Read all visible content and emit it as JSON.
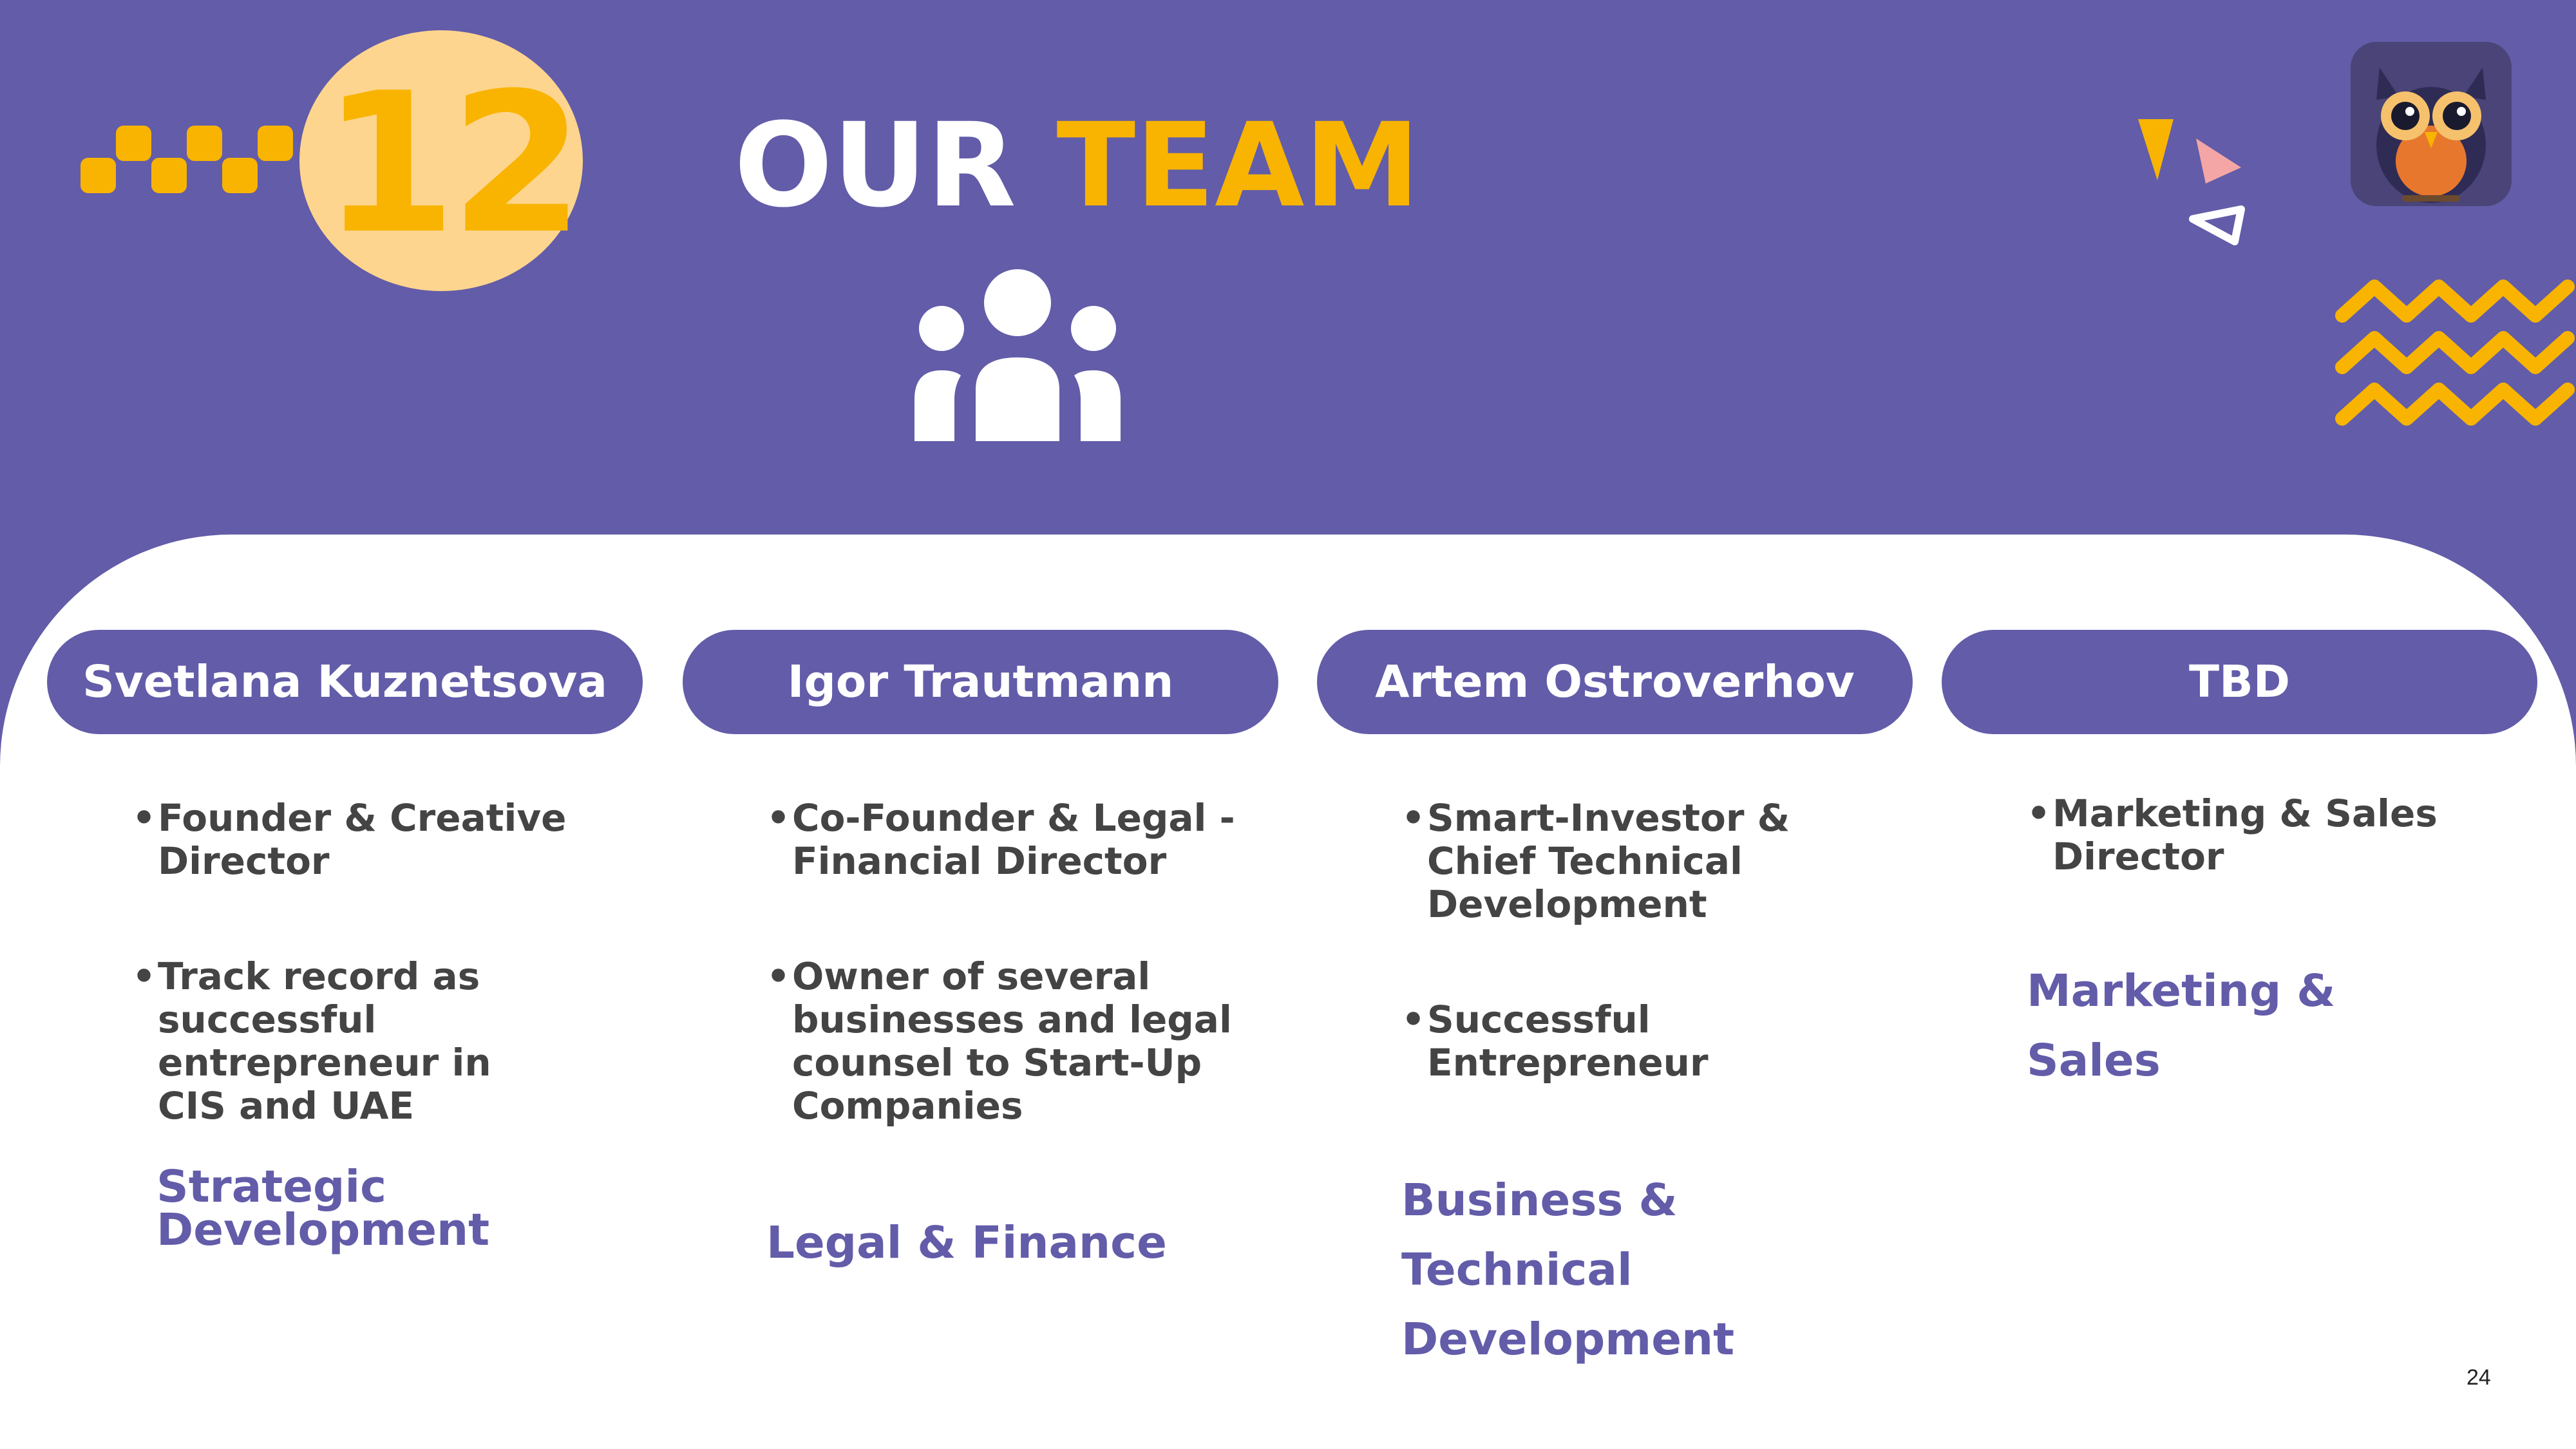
{
  "header": {
    "section_number": "12",
    "title_part1": "OUR",
    "title_part2": "TEAM"
  },
  "colors": {
    "primary": "#625CA9",
    "accent": "#F8B400",
    "badge": "#FED58E",
    "text_dark": "#444444"
  },
  "icons": [
    "checkered-dots-icon",
    "team-icon",
    "confetti-icon",
    "owl-mascot-icon",
    "zigzag-icon"
  ],
  "members": [
    {
      "name": "Svetlana Kuznetsova",
      "bullets": [
        "Founder & Creative Director",
        "Track record as successful entrepreneur in CIS and UAE"
      ],
      "area": "Strategic Development"
    },
    {
      "name": "Igor Trautmann",
      "bullets": [
        "Co-Founder & Legal - Financial Director",
        "Owner of several businesses and legal counsel to Start-Up Companies"
      ],
      "area": "Legal & Finance"
    },
    {
      "name": "Artem Ostroverhov",
      "bullets": [
        "Smart-Investor & Chief Technical Development",
        "Successful Entrepreneur"
      ],
      "area": "Business & Technical Development"
    },
    {
      "name": "TBD",
      "bullets": [
        "Marketing & Sales Director"
      ],
      "area": "Marketing & Sales"
    }
  ],
  "footer": {
    "page_number": "24"
  }
}
